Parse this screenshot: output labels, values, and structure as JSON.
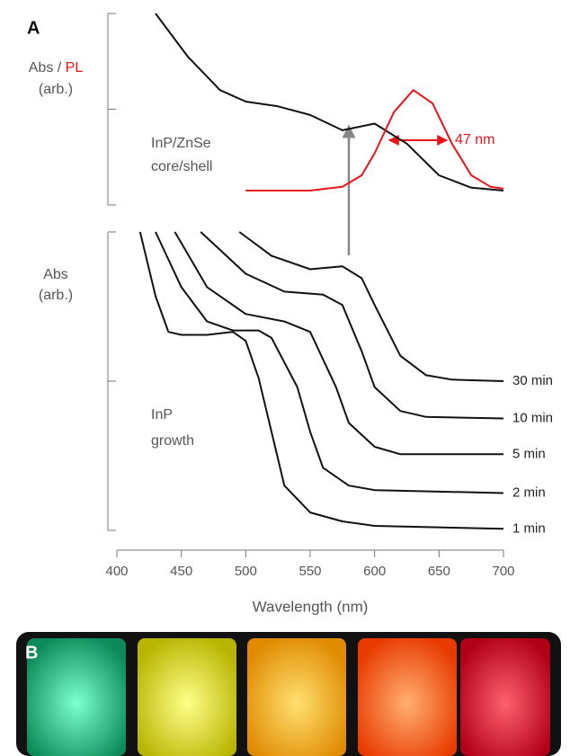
{
  "panel_labels": [
    "A",
    "B"
  ],
  "chart_data": [
    {
      "type": "line",
      "ylabel": [
        "Abs / ",
        "PL"
      ],
      "ylabel_unit": "(arb.)",
      "annotations": [
        "InP/ZnSe",
        "core/shell",
        "47 nm"
      ],
      "xlim": [
        400,
        700
      ],
      "ylim": [
        0,
        2
      ],
      "yticks": [
        0,
        1,
        2
      ],
      "series": [
        {
          "color": "#111111",
          "x": [
            430,
            455,
            480,
            500,
            525,
            550,
            575,
            600,
            625,
            650,
            675,
            700
          ],
          "values": [
            2.0,
            1.55,
            1.2,
            1.08,
            1.03,
            0.94,
            0.78,
            0.85,
            0.64,
            0.31,
            0.18,
            0.15
          ]
        },
        {
          "color": "#e8141a",
          "x": [
            500,
            550,
            575,
            590,
            600,
            615,
            630,
            645,
            660,
            675,
            690,
            700
          ],
          "values": [
            0.15,
            0.15,
            0.19,
            0.31,
            0.54,
            0.97,
            1.2,
            1.06,
            0.64,
            0.31,
            0.19,
            0.17
          ]
        }
      ]
    },
    {
      "type": "line",
      "ylabel": "Abs",
      "ylabel_unit": "(arb.)",
      "annotations": [
        "InP",
        "growth"
      ],
      "xlabel": "Wavelength (nm)",
      "xlim": [
        400,
        700
      ],
      "xticks": [
        400,
        450,
        500,
        550,
        600,
        650,
        700
      ],
      "ylim": [
        0,
        2
      ],
      "yticks": [
        0,
        1,
        2
      ],
      "series": [
        {
          "name": "30 min",
          "color": "#111111",
          "x": [
            495,
            520,
            550,
            575,
            590,
            600,
            620,
            640,
            660,
            700
          ],
          "values": [
            2.0,
            1.84,
            1.75,
            1.77,
            1.69,
            1.51,
            1.17,
            1.04,
            1.01,
            1.0
          ]
        },
        {
          "name": "10 min",
          "color": "#111111",
          "x": [
            465,
            500,
            530,
            560,
            575,
            590,
            600,
            620,
            640,
            700
          ],
          "values": [
            2.0,
            1.72,
            1.6,
            1.58,
            1.51,
            1.2,
            0.96,
            0.8,
            0.76,
            0.75
          ]
        },
        {
          "name": "5 min",
          "color": "#111111",
          "x": [
            445,
            470,
            500,
            530,
            550,
            570,
            580,
            600,
            620,
            700
          ],
          "values": [
            2.0,
            1.63,
            1.45,
            1.4,
            1.33,
            0.96,
            0.72,
            0.56,
            0.51,
            0.51
          ]
        },
        {
          "name": "2 min",
          "color": "#111111",
          "x": [
            430,
            450,
            470,
            490,
            510,
            520,
            540,
            550,
            560,
            580,
            600,
            700
          ],
          "values": [
            2.0,
            1.63,
            1.4,
            1.34,
            1.34,
            1.29,
            0.96,
            0.66,
            0.42,
            0.3,
            0.27,
            0.25
          ]
        },
        {
          "name": "1 min",
          "color": "#111111",
          "x": [
            418,
            430,
            440,
            450,
            470,
            490,
            500,
            510,
            520,
            530,
            550,
            575,
            600,
            700
          ],
          "values": [
            2.0,
            1.57,
            1.33,
            1.31,
            1.31,
            1.33,
            1.27,
            1.02,
            0.66,
            0.3,
            0.12,
            0.06,
            0.03,
            0.01
          ]
        }
      ]
    }
  ]
}
